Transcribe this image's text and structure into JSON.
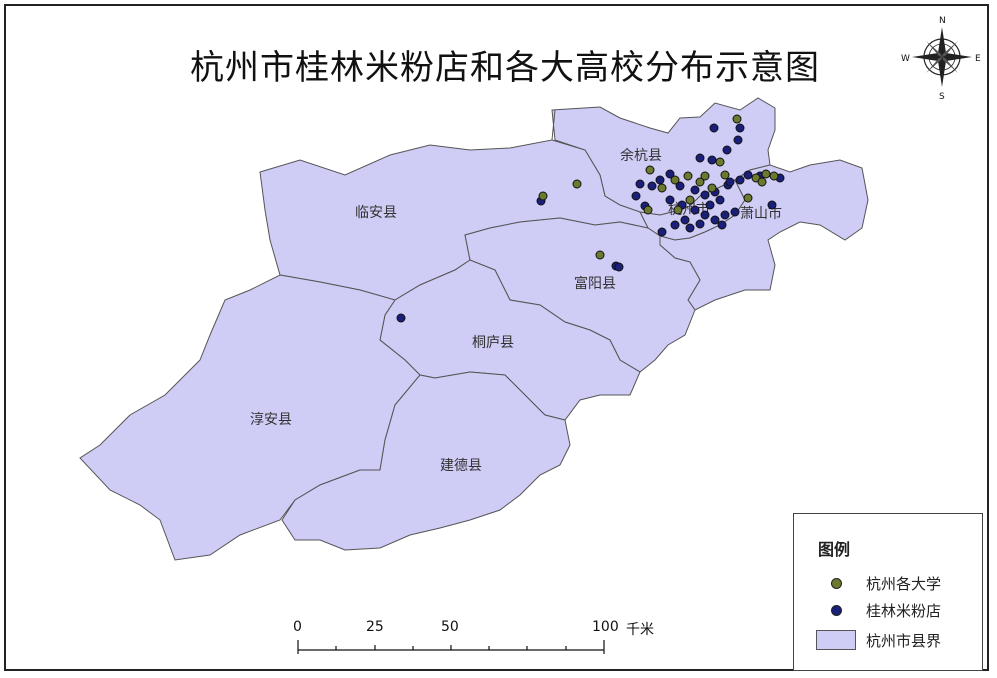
{
  "title": "杭州市桂林米粉店和各大高校分布示意图",
  "colors": {
    "region_fill": "#cfccf6",
    "region_stroke": "#555555",
    "university": "#6b7a2e",
    "noodle_shop": "#1a1f7a"
  },
  "regions": [
    {
      "id": "yuhang",
      "label": "余杭县"
    },
    {
      "id": "linan",
      "label": "临安县"
    },
    {
      "id": "hangzhou",
      "label": "杭州市"
    },
    {
      "id": "xiaoshan",
      "label": "萧山市"
    },
    {
      "id": "fuyang",
      "label": "富阳县"
    },
    {
      "id": "tonglu",
      "label": "桐庐县"
    },
    {
      "id": "chunan",
      "label": "淳安县"
    },
    {
      "id": "jiande",
      "label": "建德县"
    }
  ],
  "legend": {
    "title": "图例",
    "items": [
      {
        "label": "杭州各大学",
        "symbol": "university-dot"
      },
      {
        "label": "桂林米粉店",
        "symbol": "noodle-shop-dot"
      },
      {
        "label": "杭州市县界",
        "symbol": "county-boundary-swatch"
      }
    ]
  },
  "scale_bar": {
    "ticks": [
      "0",
      "25",
      "50",
      "100"
    ],
    "unit": "千米"
  },
  "compass": {
    "n": "N",
    "s": "S",
    "e": "E",
    "w": "W"
  }
}
